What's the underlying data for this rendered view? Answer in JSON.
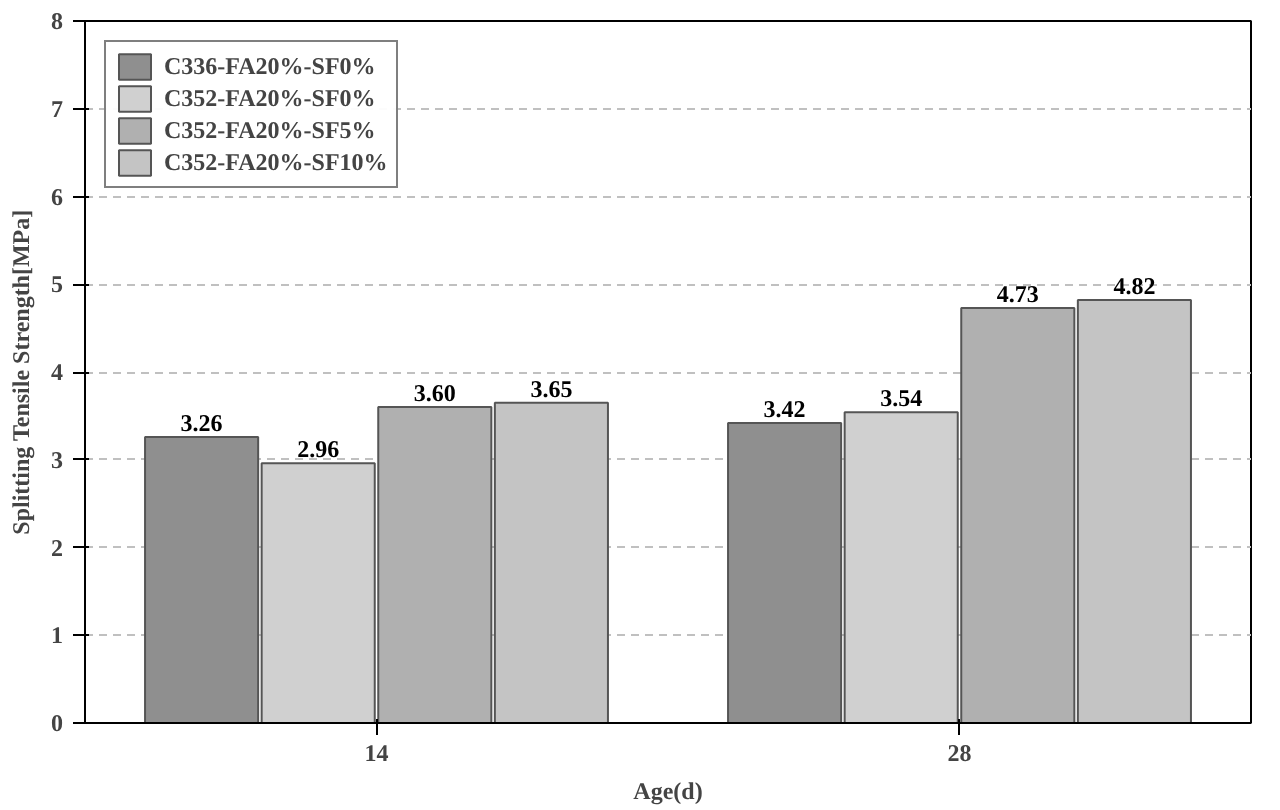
{
  "chart_data": {
    "type": "bar",
    "xlabel": "Age(d)",
    "ylabel": "Splitting Tensile Strength[MPa]",
    "categories": [
      "14",
      "28"
    ],
    "series": [
      {
        "name": "C336-FA20%-SF0%",
        "color": "#8f8f8f",
        "values": [
          3.26,
          3.42
        ],
        "value_labels": [
          "3.26",
          "3.42"
        ]
      },
      {
        "name": "C352-FA20%-SF0%",
        "color": "#d0d0d0",
        "values": [
          2.96,
          3.54
        ],
        "value_labels": [
          "2.96",
          "3.54"
        ]
      },
      {
        "name": "C352-FA20%-SF5%",
        "color": "#b0b0b0",
        "values": [
          3.6,
          4.73
        ],
        "value_labels": [
          "3.60",
          "4.73"
        ]
      },
      {
        "name": "C352-FA20%-SF10%",
        "color": "#c4c4c4",
        "values": [
          3.65,
          4.82
        ],
        "value_labels": [
          "3.65",
          "4.82"
        ]
      }
    ],
    "ylim": [
      0,
      8
    ],
    "yticks": [
      0,
      1,
      2,
      3,
      4,
      5,
      6,
      7,
      8
    ],
    "grid": "y",
    "legend": "top left"
  }
}
